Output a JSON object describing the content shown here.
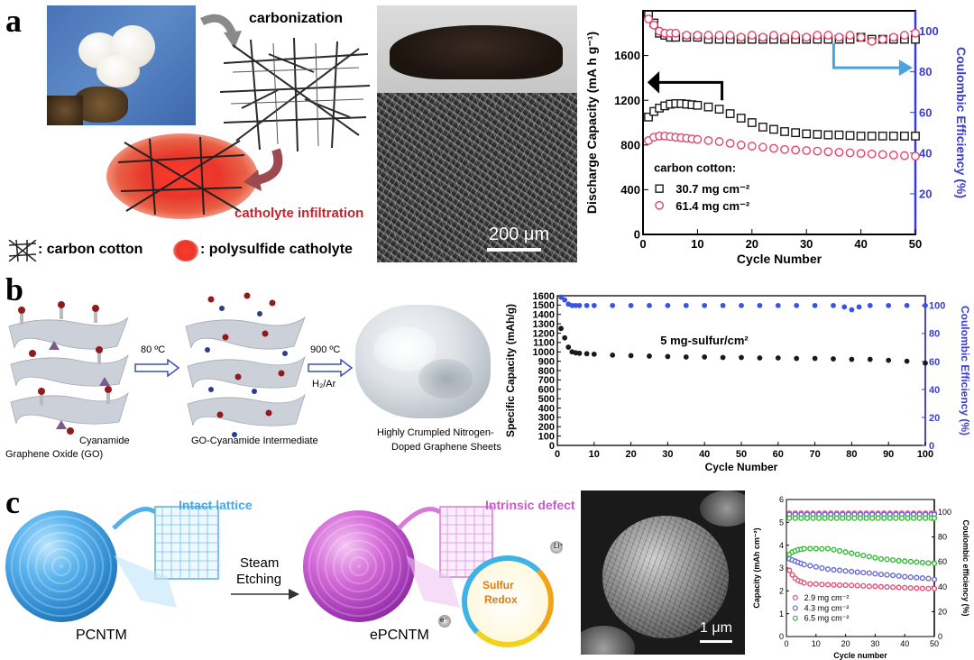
{
  "panels": {
    "a": {
      "letter": "a",
      "carbonization": "carbonization",
      "catholyte": "catholyte infiltration",
      "legend_carbon": ": carbon cotton",
      "legend_polysulfide": ": polysulfide catholyte",
      "scale_bar": "200 μm"
    },
    "b": {
      "letter": "b",
      "go": "Graphene Oxide (GO)",
      "cyanamide": "Cyanamide",
      "step1": "80 ºC",
      "intermediate": "GO-Cyanamide Intermediate",
      "step2": "900 ºC",
      "gas": "H₂/Ar",
      "product_line1": "Highly Crumpled Nitrogen-",
      "product_line2": "Doped Graphene Sheets"
    },
    "c": {
      "letter": "c",
      "intact": "Intact lattice",
      "steam1": "Steam",
      "steam2": "Etching",
      "pcntm": "PCNTM",
      "defect": "Intrinsic defect",
      "sulfur1": "Sulfur",
      "sulfur2": "Redox",
      "li": "Li⁺",
      "e": "e⁻",
      "epcntm": "ePCNTM",
      "scale_bar": "1 μm"
    }
  },
  "colors": {
    "black_series": "#1a1a1a",
    "red_series": "#e8446a",
    "blue_axis": "#3b3bd6",
    "blue_series": "#3a54e0",
    "pink_c": "#e0527a",
    "violet_c": "#6a6ad6",
    "green_c": "#35b935",
    "arrow_blue": "#4aa3df"
  },
  "chart_data": [
    {
      "id": "a",
      "type": "scatter",
      "xlabel": "Cycle Number",
      "ylabel": "Discharge Capacity (mA h g⁻¹)",
      "y2label": "Coulombic Efficiency (%)",
      "xlim": [
        0,
        50
      ],
      "ylim": [
        0,
        2000
      ],
      "y2lim": [
        0,
        110
      ],
      "xticks": [
        "0",
        "10",
        "20",
        "30",
        "40",
        "50"
      ],
      "yticks": [
        "0",
        "400",
        "800",
        "1200",
        "1600"
      ],
      "y2ticks": [
        "20",
        "40",
        "60",
        "80",
        "100"
      ],
      "legend_title": "carbon cotton:",
      "legend_location": "bottom-left",
      "series": [
        {
          "name": "30.7 mg cm⁻²",
          "axis": "left",
          "marker": "square",
          "color": "#1a1a1a",
          "x": [
            1,
            2,
            3,
            4,
            5,
            6,
            7,
            8,
            9,
            10,
            12,
            14,
            16,
            18,
            20,
            22,
            24,
            26,
            28,
            30,
            32,
            34,
            36,
            38,
            40,
            42,
            44,
            46,
            48,
            50
          ],
          "values": [
            1050,
            1100,
            1130,
            1150,
            1165,
            1170,
            1170,
            1165,
            1160,
            1155,
            1140,
            1120,
            1080,
            1040,
            1000,
            960,
            940,
            920,
            910,
            900,
            895,
            890,
            890,
            885,
            880,
            880,
            880,
            880,
            880,
            880
          ]
        },
        {
          "name": "61.4 mg cm⁻²",
          "axis": "left",
          "marker": "circle",
          "color": "#e8446a",
          "x": [
            1,
            2,
            3,
            4,
            5,
            6,
            7,
            8,
            9,
            10,
            12,
            14,
            16,
            18,
            20,
            22,
            24,
            26,
            28,
            30,
            32,
            34,
            36,
            38,
            40,
            42,
            44,
            46,
            48,
            50
          ],
          "values": [
            840,
            870,
            880,
            880,
            875,
            870,
            865,
            860,
            855,
            850,
            840,
            830,
            815,
            800,
            790,
            780,
            770,
            760,
            755,
            750,
            745,
            740,
            735,
            730,
            725,
            720,
            715,
            710,
            705,
            700
          ]
        },
        {
          "name": "CE 30.7",
          "axis": "right",
          "marker": "square",
          "color": "#1a1a1a",
          "x": [
            1,
            2,
            3,
            4,
            5,
            6,
            8,
            10,
            12,
            14,
            16,
            18,
            20,
            22,
            24,
            26,
            28,
            30,
            32,
            34,
            36,
            38,
            40,
            42,
            44,
            46,
            48,
            50
          ],
          "values": [
            108,
            104,
            99,
            98,
            97,
            97,
            97,
            97,
            96,
            96,
            96,
            96,
            96,
            96,
            96,
            96,
            96,
            96,
            96,
            96,
            96,
            96,
            97,
            96,
            96,
            96,
            96,
            96
          ]
        },
        {
          "name": "CE 61.4",
          "axis": "right",
          "marker": "circle",
          "color": "#e8446a",
          "x": [
            1,
            2,
            3,
            4,
            5,
            6,
            8,
            10,
            12,
            14,
            16,
            18,
            20,
            22,
            24,
            26,
            28,
            30,
            32,
            34,
            36,
            38,
            40,
            42,
            44,
            46,
            48,
            50
          ],
          "values": [
            106,
            103,
            100,
            99,
            99,
            99,
            98,
            98,
            98,
            98,
            98,
            97,
            98,
            97,
            98,
            97,
            98,
            97,
            98,
            98,
            97,
            98,
            97,
            95,
            96,
            97,
            98,
            99
          ]
        }
      ]
    },
    {
      "id": "b",
      "type": "scatter",
      "xlabel": "Cycle Number",
      "ylabel": "Specific Capacity (mAh/g)",
      "y2label": "Coulombic Efficiency (%)",
      "xlim": [
        0,
        100
      ],
      "ylim": [
        0,
        1600
      ],
      "y2lim": [
        0,
        107
      ],
      "xticks": [
        "0",
        "10",
        "20",
        "30",
        "40",
        "50",
        "60",
        "70",
        "80",
        "90",
        "100"
      ],
      "yticks": [
        "0",
        "100",
        "200",
        "300",
        "400",
        "500",
        "600",
        "700",
        "800",
        "900",
        "1000",
        "1100",
        "1200",
        "1300",
        "1400",
        "1500",
        "1600"
      ],
      "y2ticks": [
        "0",
        "20",
        "40",
        "60",
        "80",
        "100"
      ],
      "annotation": "5 mg-sulfur/cm²",
      "series": [
        {
          "name": "capacity",
          "axis": "left",
          "marker": "circle",
          "color": "#1a1a1a",
          "x": [
            1,
            2,
            3,
            4,
            5,
            6,
            8,
            10,
            15,
            20,
            25,
            30,
            35,
            40,
            45,
            50,
            55,
            60,
            65,
            70,
            75,
            80,
            85,
            90,
            95,
            100
          ],
          "values": [
            1250,
            1150,
            1050,
            1000,
            990,
            985,
            980,
            975,
            965,
            960,
            955,
            950,
            945,
            945,
            940,
            940,
            935,
            935,
            930,
            930,
            925,
            920,
            920,
            910,
            900,
            880
          ]
        },
        {
          "name": "CE",
          "axis": "right",
          "marker": "circle",
          "color": "#3a54e0",
          "x": [
            1,
            2,
            3,
            4,
            5,
            6,
            8,
            10,
            15,
            20,
            25,
            30,
            35,
            40,
            45,
            50,
            55,
            60,
            65,
            70,
            75,
            78,
            80,
            82,
            85,
            90,
            95,
            100
          ],
          "values": [
            106,
            104,
            101,
            100,
            100,
            100,
            100,
            100,
            100,
            100,
            100,
            100,
            100,
            100,
            100,
            100,
            100,
            100,
            100,
            100,
            100,
            99,
            97,
            99,
            100,
            100,
            100,
            100
          ]
        }
      ]
    },
    {
      "id": "c",
      "type": "scatter",
      "xlabel": "Cycle number",
      "ylabel": "Capacity (mAh cm⁻²)",
      "y2label": "Coulombic efficiency (%)",
      "xlim": [
        0,
        50
      ],
      "ylim": [
        0,
        6
      ],
      "y2lim": [
        0,
        110
      ],
      "xticks": [
        "0",
        "10",
        "20",
        "30",
        "40",
        "50"
      ],
      "yticks": [
        "0",
        "1",
        "2",
        "3",
        "4",
        "5",
        "6"
      ],
      "y2ticks": [
        "0",
        "20",
        "40",
        "60",
        "80",
        "100"
      ],
      "legend_location": "bottom-left",
      "series": [
        {
          "name": "2.9 mg cm⁻²",
          "axis": "left",
          "marker": "circle",
          "color": "#e0527a",
          "x": [
            1,
            2,
            3,
            4,
            5,
            6,
            8,
            10,
            12,
            14,
            16,
            18,
            20,
            22,
            24,
            26,
            28,
            30,
            32,
            34,
            36,
            38,
            40,
            42,
            44,
            46,
            48,
            50
          ],
          "values": [
            2.9,
            2.7,
            2.55,
            2.45,
            2.4,
            2.35,
            2.3,
            2.3,
            2.28,
            2.27,
            2.26,
            2.25,
            2.25,
            2.24,
            2.23,
            2.22,
            2.2,
            2.2,
            2.18,
            2.17,
            2.16,
            2.15,
            2.14,
            2.13,
            2.12,
            2.11,
            2.1,
            2.1
          ]
        },
        {
          "name": "4.3 mg cm⁻²",
          "axis": "left",
          "marker": "circle",
          "color": "#6a6ad6",
          "x": [
            1,
            2,
            3,
            4,
            5,
            6,
            8,
            10,
            12,
            14,
            16,
            18,
            20,
            22,
            24,
            26,
            28,
            30,
            32,
            34,
            36,
            38,
            40,
            42,
            44,
            46,
            48,
            50
          ],
          "values": [
            3.4,
            3.35,
            3.3,
            3.25,
            3.2,
            3.15,
            3.1,
            3.05,
            3.0,
            2.95,
            2.92,
            2.9,
            2.87,
            2.85,
            2.82,
            2.8,
            2.78,
            2.75,
            2.72,
            2.7,
            2.68,
            2.65,
            2.62,
            2.6,
            2.58,
            2.56,
            2.54,
            2.5
          ]
        },
        {
          "name": "6.5 mg cm⁻²",
          "axis": "left",
          "marker": "circle",
          "color": "#35b935",
          "x": [
            1,
            2,
            3,
            4,
            5,
            6,
            8,
            10,
            12,
            14,
            16,
            18,
            20,
            22,
            24,
            26,
            28,
            30,
            32,
            34,
            36,
            38,
            40,
            42,
            44,
            46,
            48,
            50
          ],
          "values": [
            3.6,
            3.7,
            3.75,
            3.8,
            3.82,
            3.85,
            3.85,
            3.85,
            3.84,
            3.85,
            3.8,
            3.75,
            3.7,
            3.65,
            3.6,
            3.55,
            3.5,
            3.45,
            3.4,
            3.38,
            3.35,
            3.32,
            3.3,
            3.28,
            3.26,
            3.24,
            3.22,
            3.2
          ]
        },
        {
          "name": "CE 2.9",
          "axis": "right",
          "marker": "circle",
          "color": "#e0527a",
          "x": [
            1,
            3,
            5,
            7,
            9,
            11,
            13,
            15,
            17,
            19,
            21,
            23,
            25,
            27,
            29,
            31,
            33,
            35,
            37,
            39,
            41,
            43,
            45,
            47,
            49,
            50
          ],
          "values": [
            99,
            99,
            99,
            99,
            99,
            99,
            99,
            99,
            99,
            99,
            99,
            99,
            99,
            99,
            99,
            99,
            99,
            99,
            99,
            99,
            99,
            99,
            99,
            99,
            99,
            99
          ]
        },
        {
          "name": "CE 4.3",
          "axis": "right",
          "marker": "circle",
          "color": "#6a6ad6",
          "x": [
            1,
            3,
            5,
            7,
            9,
            11,
            13,
            15,
            17,
            19,
            21,
            23,
            25,
            27,
            29,
            31,
            33,
            35,
            37,
            39,
            41,
            43,
            45,
            47,
            49,
            50
          ],
          "values": [
            98,
            98,
            98,
            98,
            98,
            98,
            98,
            98,
            98,
            98,
            98,
            98,
            98,
            98,
            98,
            98,
            98,
            98,
            98,
            98,
            98,
            98,
            98,
            98,
            98,
            98
          ]
        },
        {
          "name": "CE 6.5",
          "axis": "right",
          "marker": "circle",
          "color": "#35b935",
          "x": [
            1,
            3,
            5,
            7,
            9,
            11,
            13,
            15,
            17,
            19,
            21,
            23,
            25,
            27,
            29,
            31,
            33,
            35,
            37,
            39,
            41,
            43,
            45,
            47,
            49,
            50
          ],
          "values": [
            95,
            95,
            95,
            95,
            95,
            95,
            95,
            95,
            95,
            95,
            95,
            95,
            95,
            95,
            95,
            95,
            95,
            95,
            95,
            95,
            95,
            95,
            95,
            95,
            95,
            95
          ]
        }
      ]
    }
  ]
}
